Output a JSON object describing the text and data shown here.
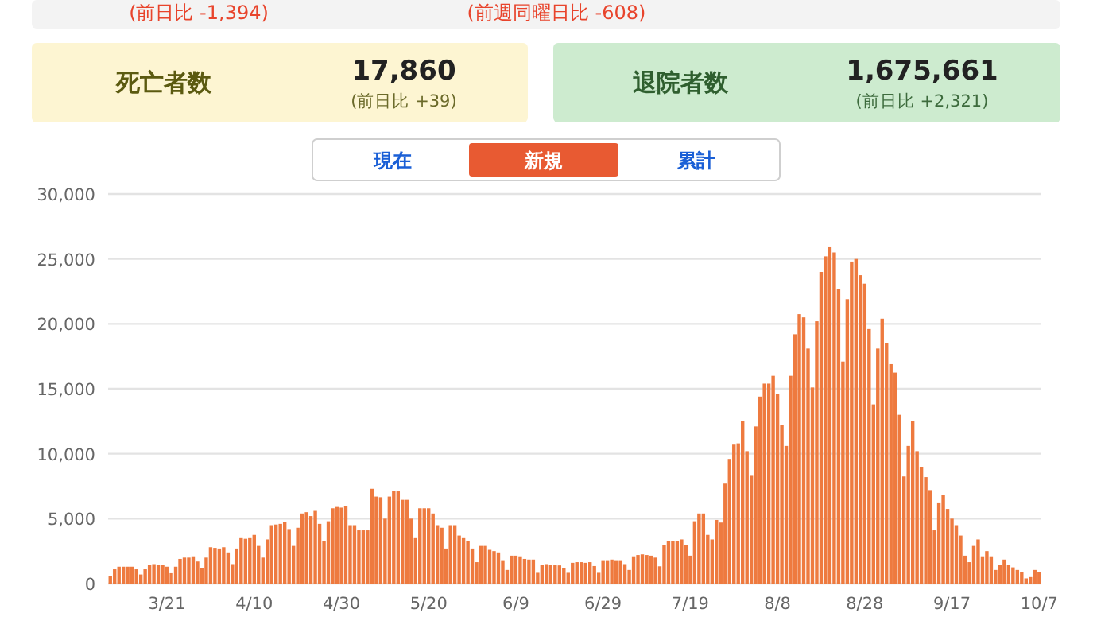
{
  "chart_data": [
    {
      "type": "other",
      "annotations": [
        "(前日比 -1,394)",
        "(前週同曜日比 -608)",
        "死亡者数",
        "17,860",
        "(前日比 +39)",
        "退院者数",
        "1,675,661",
        "(前日比 +2,321)",
        "現在",
        "新規",
        "累計"
      ]
    },
    {
      "type": "bar",
      "categories": [
        null,
        null,
        null,
        null,
        null,
        null,
        null,
        null,
        null,
        null,
        null,
        null,
        null,
        "3/21",
        null,
        null,
        null,
        null,
        null,
        null,
        null,
        null,
        null,
        null,
        null,
        null,
        null,
        null,
        null,
        null,
        null,
        null,
        null,
        "4/10",
        null,
        null,
        null,
        null,
        null,
        null,
        null,
        null,
        null,
        null,
        null,
        null,
        null,
        null,
        null,
        null,
        null,
        null,
        null,
        "4/30",
        null,
        null,
        null,
        null,
        null,
        null,
        null,
        null,
        null,
        null,
        null,
        null,
        null,
        null,
        null,
        null,
        null,
        null,
        null,
        "5/20",
        null,
        null,
        null,
        null,
        null,
        null,
        null,
        null,
        null,
        null,
        null,
        null,
        null,
        null,
        null,
        null,
        null,
        null,
        null,
        "6/9",
        null,
        null,
        null,
        null,
        null,
        null,
        null,
        null,
        null,
        null,
        null,
        null,
        null,
        null,
        null,
        null,
        null,
        null,
        null,
        "6/29",
        null,
        null,
        null,
        null,
        null,
        null,
        null,
        null,
        null,
        null,
        null,
        null,
        null,
        null,
        null,
        null,
        null,
        null,
        null,
        "7/19",
        null,
        null,
        null,
        null,
        null,
        null,
        null,
        null,
        null,
        null,
        null,
        null,
        null,
        null,
        null,
        null,
        null,
        null,
        null,
        "8/8",
        null,
        null,
        null,
        null,
        null,
        null,
        null,
        null,
        null,
        null,
        null,
        null,
        null,
        null,
        null,
        null,
        null,
        null,
        null,
        "8/28",
        null,
        null,
        null,
        null,
        null,
        null,
        null,
        null,
        null,
        null,
        null,
        null,
        null,
        null,
        null,
        null,
        null,
        null,
        null,
        "9/17",
        null,
        null,
        null,
        null,
        null,
        null,
        null,
        null,
        null,
        null,
        null,
        null,
        null,
        null,
        null,
        null,
        null,
        null,
        null,
        "10/7"
      ],
      "values": [
        600,
        1100,
        1300,
        1300,
        1300,
        1300,
        1100,
        700,
        1100,
        1450,
        1500,
        1450,
        1450,
        1300,
        800,
        1300,
        1900,
        2000,
        2000,
        2100,
        1700,
        1200,
        2000,
        2800,
        2750,
        2700,
        2800,
        2400,
        1500,
        2700,
        3500,
        3450,
        3500,
        3750,
        2900,
        2000,
        3400,
        4500,
        4550,
        4600,
        4750,
        4200,
        2900,
        4300,
        5400,
        5500,
        5200,
        5600,
        4600,
        3300,
        4800,
        5800,
        5900,
        5850,
        5950,
        4500,
        4500,
        4100,
        4100,
        4100,
        7300,
        6700,
        6650,
        5000,
        6700,
        7150,
        7100,
        6450,
        6450,
        5000,
        3500,
        5800,
        5800,
        5800,
        5400,
        4500,
        4300,
        2700,
        4500,
        4500,
        3700,
        3500,
        3300,
        2700,
        1650,
        2900,
        2900,
        2600,
        2500,
        2400,
        1800,
        1050,
        2150,
        2150,
        2100,
        1900,
        1850,
        1850,
        830,
        1450,
        1500,
        1450,
        1450,
        1400,
        1200,
        830,
        1600,
        1650,
        1650,
        1600,
        1650,
        1350,
        830,
        1800,
        1800,
        1850,
        1800,
        1800,
        1500,
        1050,
        2100,
        2200,
        2250,
        2200,
        2150,
        2000,
        1330,
        3000,
        3300,
        3300,
        3300,
        3400,
        3000,
        2150,
        4800,
        5400,
        5400,
        3750,
        3400,
        4900,
        4700,
        7700,
        9600,
        10700,
        10800,
        12500,
        10200,
        8300,
        12100,
        14400,
        15400,
        15400,
        16000,
        14600,
        12200,
        10600,
        16000,
        19200,
        20750,
        20500,
        18100,
        15100,
        20200,
        24000,
        25200,
        25900,
        25500,
        22700,
        17100,
        21900,
        24800,
        25000,
        23750,
        23100,
        19600,
        13800,
        18100,
        20400,
        18500,
        16900,
        16250,
        13000,
        8250,
        10600,
        12500,
        10200,
        9000,
        8200,
        7200,
        4100,
        6250,
        6800,
        5750,
        5000,
        4500,
        3700,
        2150,
        1650,
        2900,
        3400,
        2100,
        2500,
        2100,
        1050,
        1450,
        1850,
        1450,
        1250,
        1050,
        900,
        400,
        500,
        1050,
        900
      ],
      "color": "#ee7a3f",
      "ylim": [
        0,
        30000
      ],
      "yticks": [
        0,
        {
          "value": 5000,
          "label": "5,000"
        },
        {
          "value": 10000,
          "label": "10,000"
        },
        {
          "value": 15000,
          "label": "15,000"
        },
        {
          "value": 20000,
          "label": "20,000"
        },
        {
          "value": 25000,
          "label": "25,000"
        },
        {
          "value": 30000,
          "label": "30,000"
        }
      ],
      "grid": "y"
    }
  ]
}
